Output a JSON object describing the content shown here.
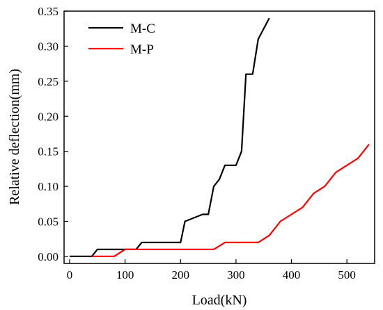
{
  "chart_data": {
    "type": "line",
    "xlabel": "Load(kN)",
    "ylabel": "Relative deflection(mm)",
    "xlim": [
      -10,
      550
    ],
    "ylim": [
      -0.01,
      0.35
    ],
    "xticks": [
      "0",
      "100",
      "200",
      "300",
      "400",
      "500"
    ],
    "yticks": [
      "0.00",
      "0.05",
      "0.10",
      "0.15",
      "0.20",
      "0.25",
      "0.30",
      "0.35"
    ],
    "xtick_values": [
      0,
      100,
      200,
      300,
      400,
      500
    ],
    "ytick_values": [
      0,
      0.05,
      0.1,
      0.15,
      0.2,
      0.25,
      0.3,
      0.35
    ],
    "legend_position": "top-left",
    "grid": false,
    "series": [
      {
        "name": "M-C",
        "color": "#000000",
        "x": [
          0,
          40,
          50,
          100,
          120,
          130,
          200,
          208,
          240,
          250,
          260,
          270,
          280,
          300,
          310,
          318,
          330,
          340,
          360
        ],
        "y": [
          0,
          0,
          0.01,
          0.01,
          0.01,
          0.02,
          0.02,
          0.05,
          0.06,
          0.06,
          0.1,
          0.11,
          0.13,
          0.13,
          0.15,
          0.26,
          0.26,
          0.31,
          0.34
        ]
      },
      {
        "name": "M-P",
        "color": "#ff0000",
        "x": [
          40,
          80,
          100,
          140,
          260,
          280,
          340,
          360,
          380,
          420,
          440,
          460,
          480,
          520,
          540
        ],
        "y": [
          0,
          0,
          0.01,
          0.01,
          0.01,
          0.02,
          0.02,
          0.03,
          0.05,
          0.07,
          0.09,
          0.1,
          0.12,
          0.14,
          0.16
        ]
      }
    ]
  }
}
